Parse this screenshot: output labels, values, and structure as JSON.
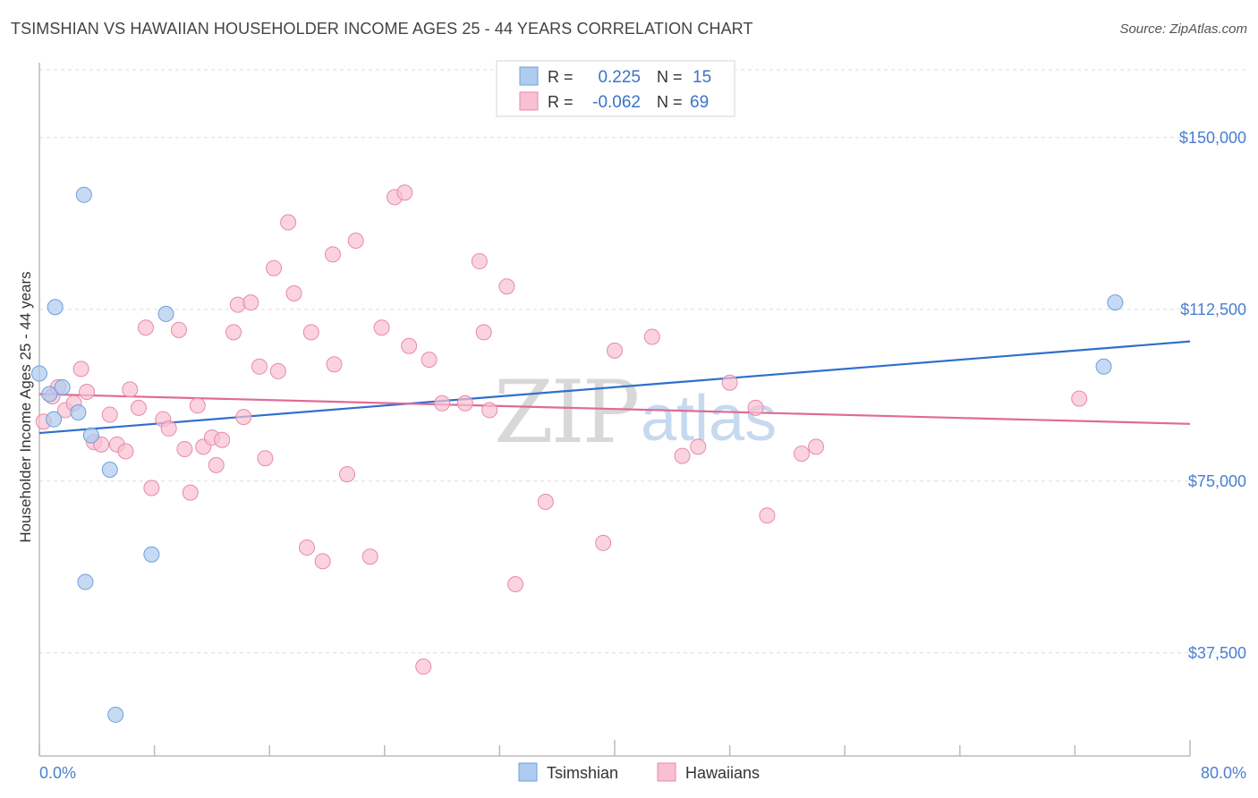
{
  "header": {
    "title": "TSIMSHIAN VS HAWAIIAN HOUSEHOLDER INCOME AGES 25 - 44 YEARS CORRELATION CHART",
    "source": "Source: ZipAtlas.com"
  },
  "legend_top": {
    "rows": [
      {
        "r_label": "R =",
        "r_value": "0.225",
        "n_label": "N =",
        "n_value": "15",
        "color": "#aecbf0",
        "stroke": "#6f9fdc"
      },
      {
        "r_label": "R =",
        "r_value": "-0.062",
        "n_label": "N =",
        "n_value": "69",
        "color": "#f8c0d2",
        "stroke": "#e78aa9"
      }
    ]
  },
  "legend_bottom": {
    "items": [
      {
        "label": "Tsimshian",
        "color": "#aecbf0",
        "stroke": "#6f9fdc"
      },
      {
        "label": "Hawaiians",
        "color": "#f8c0d2",
        "stroke": "#e78aa9"
      }
    ]
  },
  "watermark": {
    "part1": "ZIP",
    "part2": "atlas"
  },
  "chart_data": {
    "type": "scatter",
    "title": "TSIMSHIAN VS HAWAIIAN HOUSEHOLDER INCOME AGES 25 - 44 YEARS CORRELATION CHART",
    "xlabel": "",
    "ylabel": "Householder Income Ages 25 - 44 years",
    "xlim": [
      0,
      80
    ],
    "ylim": [
      15000,
      155000
    ],
    "x_end_labels": [
      "0.0%",
      "80.0%"
    ],
    "y_ticks": [
      {
        "value": 37500,
        "label": "$37,500"
      },
      {
        "value": 75000,
        "label": "$75,000"
      },
      {
        "value": 112500,
        "label": "$112,500"
      },
      {
        "value": 150000,
        "label": "$150,000"
      }
    ],
    "grid": true,
    "series": [
      {
        "name": "Tsimshian",
        "color": "#aecbf0",
        "stroke": "#6f9fdc",
        "line_color": "#2f6fcc",
        "trend": {
          "x0": 0,
          "y0": 85500,
          "x1": 80,
          "y1": 105500
        },
        "points": [
          [
            0.0,
            98500
          ],
          [
            0.7,
            94000
          ],
          [
            1.0,
            88500
          ],
          [
            1.1,
            113000
          ],
          [
            1.6,
            95500
          ],
          [
            2.7,
            90000
          ],
          [
            3.1,
            137500
          ],
          [
            3.2,
            53000
          ],
          [
            3.6,
            85000
          ],
          [
            4.9,
            77500
          ],
          [
            5.3,
            24000
          ],
          [
            7.8,
            59000
          ],
          [
            8.8,
            111500
          ],
          [
            74.8,
            114000
          ],
          [
            74.0,
            100000
          ]
        ]
      },
      {
        "name": "Hawaiians",
        "color": "#f8c0d2",
        "stroke": "#e78aa9",
        "line_color": "#e06a96",
        "trend": {
          "x0": 0,
          "y0": 94000,
          "x1": 80,
          "y1": 87500
        },
        "points": [
          [
            0.3,
            88000
          ],
          [
            0.9,
            93500
          ],
          [
            1.3,
            95500
          ],
          [
            1.8,
            90500
          ],
          [
            2.4,
            92000
          ],
          [
            2.9,
            99500
          ],
          [
            3.3,
            94500
          ],
          [
            3.8,
            83500
          ],
          [
            4.3,
            83000
          ],
          [
            4.9,
            89500
          ],
          [
            5.4,
            83000
          ],
          [
            6.0,
            81500
          ],
          [
            6.3,
            95000
          ],
          [
            6.9,
            91000
          ],
          [
            7.4,
            108500
          ],
          [
            7.8,
            73500
          ],
          [
            8.6,
            88500
          ],
          [
            9.0,
            86500
          ],
          [
            9.7,
            108000
          ],
          [
            10.1,
            82000
          ],
          [
            10.5,
            72500
          ],
          [
            11.0,
            91500
          ],
          [
            11.4,
            82500
          ],
          [
            12.0,
            84500
          ],
          [
            12.3,
            78500
          ],
          [
            12.7,
            84000
          ],
          [
            13.5,
            107500
          ],
          [
            13.8,
            113500
          ],
          [
            14.2,
            89000
          ],
          [
            14.7,
            114000
          ],
          [
            15.3,
            100000
          ],
          [
            15.7,
            80000
          ],
          [
            16.3,
            121500
          ],
          [
            16.6,
            99000
          ],
          [
            17.3,
            131500
          ],
          [
            17.7,
            116000
          ],
          [
            18.6,
            60500
          ],
          [
            18.9,
            107500
          ],
          [
            19.7,
            57500
          ],
          [
            20.4,
            124500
          ],
          [
            20.5,
            100500
          ],
          [
            21.4,
            76500
          ],
          [
            22.0,
            127500
          ],
          [
            23.0,
            58500
          ],
          [
            23.8,
            108500
          ],
          [
            24.7,
            137000
          ],
          [
            25.4,
            138000
          ],
          [
            25.7,
            104500
          ],
          [
            26.7,
            34500
          ],
          [
            27.1,
            101500
          ],
          [
            28.0,
            92000
          ],
          [
            29.6,
            92000
          ],
          [
            30.6,
            123000
          ],
          [
            30.9,
            107500
          ],
          [
            31.3,
            90500
          ],
          [
            32.5,
            117500
          ],
          [
            33.1,
            52500
          ],
          [
            35.2,
            70500
          ],
          [
            39.2,
            61500
          ],
          [
            40.0,
            103500
          ],
          [
            42.6,
            106500
          ],
          [
            44.7,
            80500
          ],
          [
            45.8,
            82500
          ],
          [
            48.0,
            96500
          ],
          [
            49.8,
            91000
          ],
          [
            50.6,
            67500
          ],
          [
            53.0,
            81000
          ],
          [
            54.0,
            82500
          ],
          [
            72.3,
            93000
          ]
        ]
      }
    ]
  }
}
